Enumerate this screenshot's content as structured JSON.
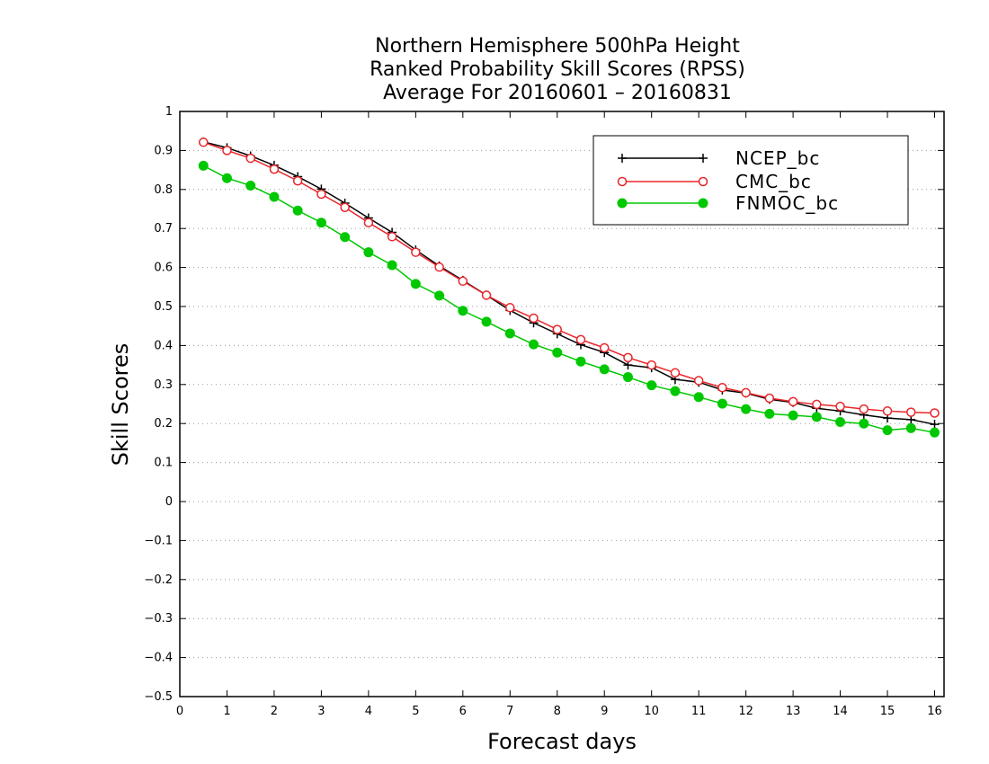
{
  "chart_data": {
    "type": "line",
    "title": [
      "Northern Hemisphere 500hPa Height",
      "Ranked Probability Skill Scores (RPSS)",
      "Average For 20160601 – 20160831"
    ],
    "xlabel": "Forecast days",
    "ylabel": "Skill Scores",
    "xlim": [
      0,
      16.2
    ],
    "ylim": [
      -0.5,
      1
    ],
    "xticks": [
      "0",
      "1",
      "2",
      "3",
      "4",
      "5",
      "6",
      "7",
      "8",
      "9",
      "10",
      "11",
      "12",
      "13",
      "14",
      "15",
      "16"
    ],
    "yticks": [
      "−0.5",
      "−0.4",
      "−0.3",
      "−0.2",
      "−0.1",
      "0",
      "0.1",
      "0.2",
      "0.3",
      "0.4",
      "0.5",
      "0.6",
      "0.7",
      "0.8",
      "0.9",
      "1"
    ],
    "grid": "horizontal dotted",
    "legend_position": "top-right",
    "x": [
      0.5,
      1,
      1.5,
      2,
      2.5,
      3,
      3.5,
      4,
      4.5,
      5,
      5.5,
      6,
      6.5,
      7,
      7.5,
      8,
      8.5,
      9,
      9.5,
      10,
      10.5,
      11,
      11.5,
      12,
      12.5,
      13,
      13.5,
      14,
      14.5,
      15,
      15.5,
      16
    ],
    "series": [
      {
        "name": "NCEP_bc",
        "color": "#000000",
        "marker": "plus",
        "values": [
          0.922,
          0.907,
          0.886,
          0.862,
          0.833,
          0.801,
          0.765,
          0.727,
          0.69,
          0.645,
          0.604,
          0.567,
          0.529,
          0.49,
          0.458,
          0.43,
          0.402,
          0.382,
          0.35,
          0.343,
          0.313,
          0.306,
          0.286,
          0.278,
          0.262,
          0.254,
          0.239,
          0.232,
          0.222,
          0.214,
          0.21,
          0.198
        ]
      },
      {
        "name": "CMC_bc",
        "color": "#e8262b",
        "marker": "open-circle",
        "values": [
          0.921,
          0.9,
          0.88,
          0.852,
          0.822,
          0.788,
          0.754,
          0.715,
          0.679,
          0.639,
          0.601,
          0.565,
          0.529,
          0.497,
          0.47,
          0.441,
          0.415,
          0.394,
          0.369,
          0.35,
          0.33,
          0.31,
          0.292,
          0.279,
          0.265,
          0.256,
          0.249,
          0.244,
          0.237,
          0.232,
          0.229,
          0.227
        ]
      },
      {
        "name": "FNMOC_bc",
        "color": "#00c800",
        "marker": "filled-circle",
        "values": [
          0.861,
          0.829,
          0.81,
          0.781,
          0.746,
          0.715,
          0.678,
          0.639,
          0.606,
          0.558,
          0.528,
          0.489,
          0.461,
          0.431,
          0.403,
          0.382,
          0.359,
          0.339,
          0.319,
          0.298,
          0.283,
          0.268,
          0.251,
          0.237,
          0.225,
          0.221,
          0.217,
          0.204,
          0.2,
          0.183,
          0.188,
          0.177
        ]
      }
    ]
  }
}
